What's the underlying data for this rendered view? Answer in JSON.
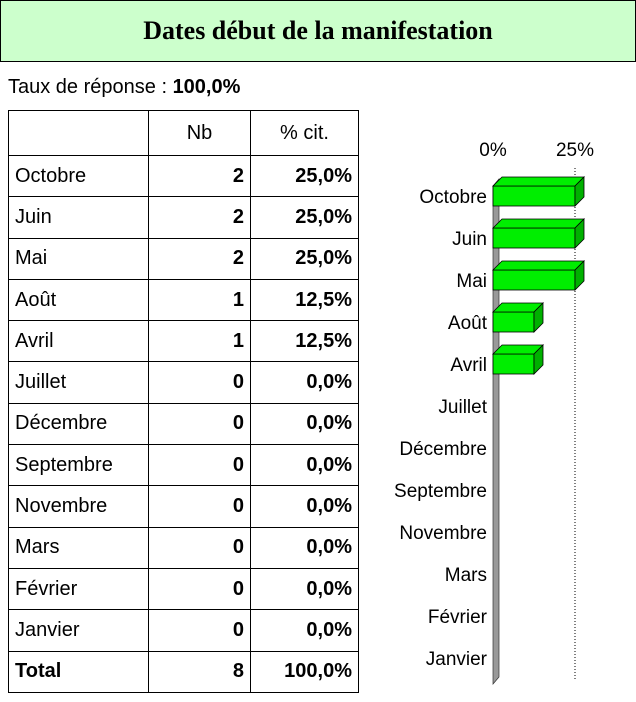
{
  "header": {
    "title": "Dates début de la manifestation"
  },
  "response": {
    "label": "Taux de réponse :",
    "value": "100,0%"
  },
  "table": {
    "columns": [
      "Nb",
      "% cit."
    ],
    "rows": [
      [
        "Octobre",
        "2",
        "25,0%"
      ],
      [
        "Juin",
        "2",
        "25,0%"
      ],
      [
        "Mai",
        "2",
        "25,0%"
      ],
      [
        "Août",
        "1",
        "12,5%"
      ],
      [
        "Avril",
        "1",
        "12,5%"
      ],
      [
        "Juillet",
        "0",
        "0,0%"
      ],
      [
        "Décembre",
        "0",
        "0,0%"
      ],
      [
        "Septembre",
        "0",
        "0,0%"
      ],
      [
        "Novembre",
        "0",
        "0,0%"
      ],
      [
        "Mars",
        "0",
        "0,0%"
      ],
      [
        "Février",
        "0",
        "0,0%"
      ],
      [
        "Janvier",
        "0",
        "0,0%"
      ]
    ],
    "total": [
      "Total",
      "8",
      "100,0%"
    ]
  },
  "chart_data": {
    "type": "bar3d",
    "orientation": "horizontal",
    "categories": [
      "Octobre",
      "Juin",
      "Mai",
      "Août",
      "Avril",
      "Juillet",
      "Décembre",
      "Septembre",
      "Novembre",
      "Mars",
      "Février",
      "Janvier"
    ],
    "values": [
      25,
      25,
      25,
      12.5,
      12.5,
      0,
      0,
      0,
      0,
      0,
      0,
      0
    ],
    "color": "#00ee00",
    "xlim": [
      0,
      25
    ],
    "xticks": [
      {
        "value": 0,
        "label": "0%"
      },
      {
        "value": 25,
        "label": "25%"
      }
    ]
  }
}
